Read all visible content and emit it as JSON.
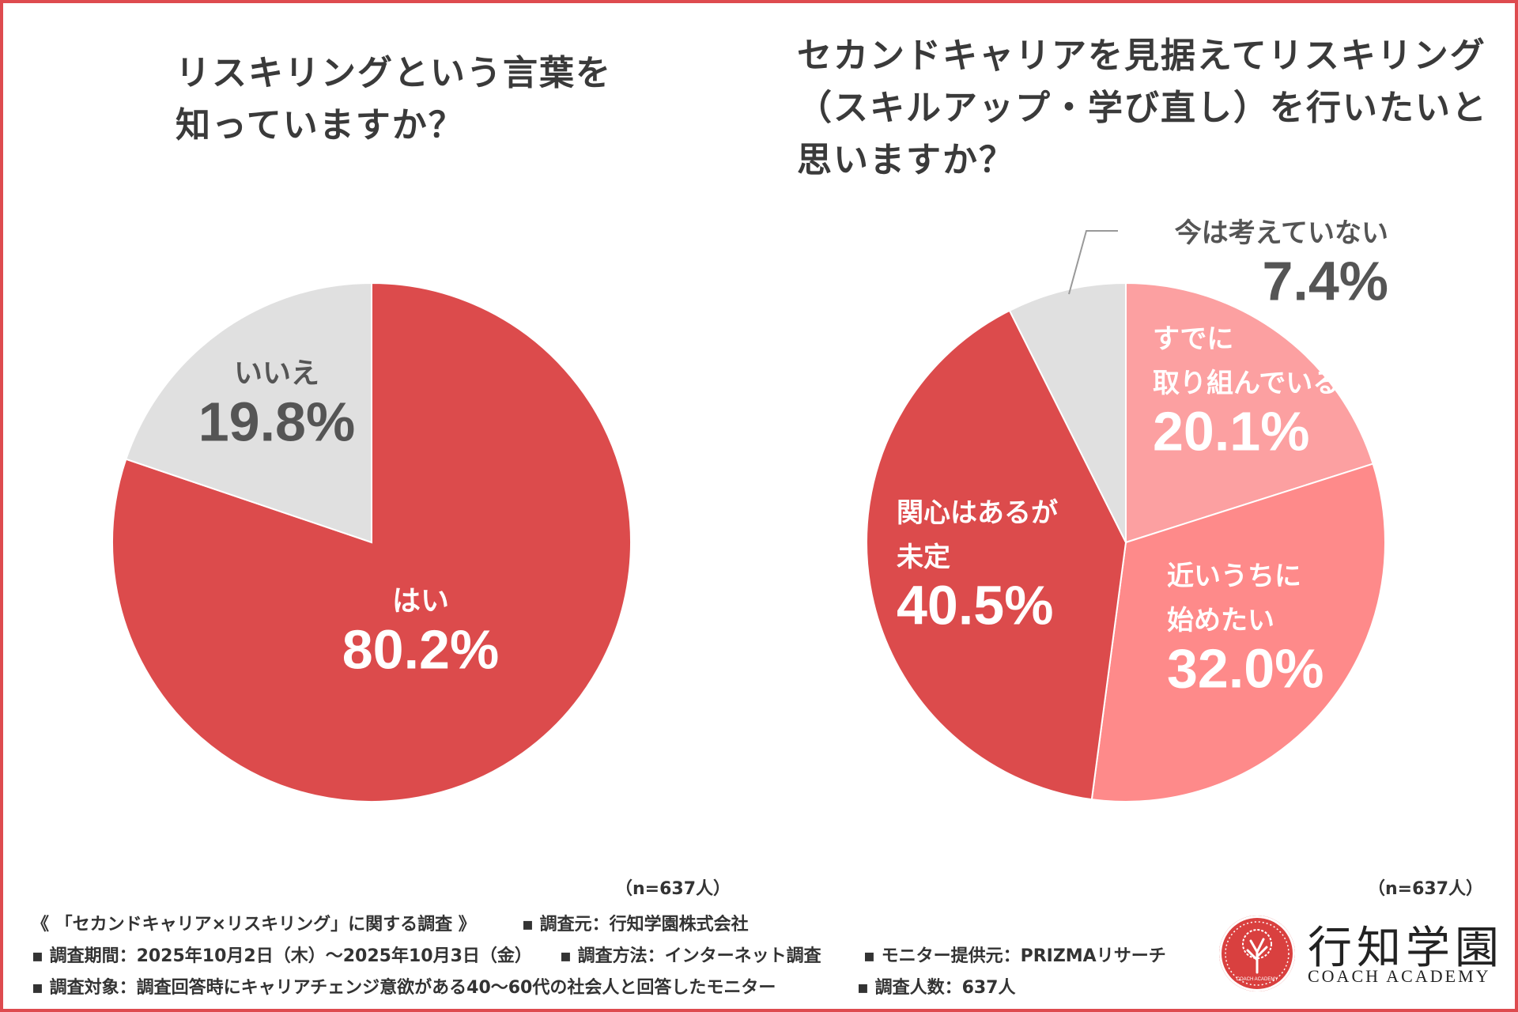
{
  "colors": {
    "frame": "#de4b4f",
    "yes": "#dc4b4c",
    "no": "#e0e0e0",
    "already": "#fca0a1",
    "soon": "#fe8a8a",
    "undecided": "#dc4b4c",
    "not_now": "#e0e0e0",
    "dark_text": "#555555",
    "white_text": "#ffffff"
  },
  "chart_data": [
    {
      "type": "pie",
      "title_lines": [
        "リスキリングという言葉を",
        "知っていますか？"
      ],
      "n_label": "（n=637人）",
      "slices": [
        {
          "key": "yes",
          "label_lines": [
            "はい"
          ],
          "value": 80.2,
          "pct_label": "80.2%"
        },
        {
          "key": "no",
          "label_lines": [
            "いいえ"
          ],
          "value": 19.8,
          "pct_label": "19.8%"
        }
      ]
    },
    {
      "type": "pie",
      "title_lines": [
        "セカンドキャリアを見据えてリスキリング",
        "（スキルアップ・学び直し）を行いたいと",
        "思いますか？"
      ],
      "n_label": "（n=637人）",
      "slices": [
        {
          "key": "already",
          "label_lines": [
            "すでに",
            "取り組んでいる"
          ],
          "value": 20.1,
          "pct_label": "20.1%"
        },
        {
          "key": "soon",
          "label_lines": [
            "近いうちに",
            "始めたい"
          ],
          "value": 32.0,
          "pct_label": "32.0%"
        },
        {
          "key": "undecided",
          "label_lines": [
            "関心はあるが",
            "未定"
          ],
          "value": 40.5,
          "pct_label": "40.5%"
        },
        {
          "key": "not_now",
          "label_lines": [
            "今は考えていない"
          ],
          "value": 7.4,
          "pct_label": "7.4%"
        }
      ]
    }
  ],
  "footer": {
    "row1": [
      "《 「セカンドキャリア×リスキリング」に関する調査 》",
      "▪ 調査元：行知学園株式会社"
    ],
    "row2": [
      "▪ 調査期間：2025年10月2日（木）〜2025年10月3日（金）",
      "▪ 調査方法：インターネット調査",
      "▪ モニター提供元：PRIZMAリサーチ"
    ],
    "row3": [
      "▪ 調査対象：調査回答時にキャリアチェンジ意欲がある40〜60代の社会人と回答したモニター",
      "▪ 調査人数：637人"
    ]
  },
  "logo": {
    "name": "行知学園",
    "sub": "COACH ACADEMY",
    "badge_text": "COACH ACADEMY"
  }
}
